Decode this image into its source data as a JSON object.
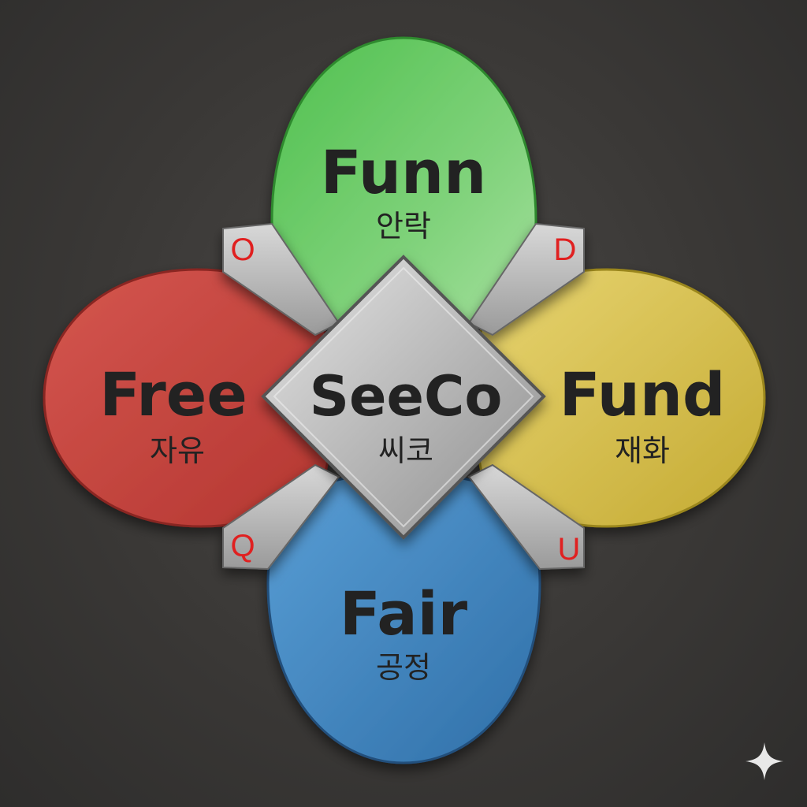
{
  "center": {
    "title": "SeeCo",
    "subtitle": "씨코"
  },
  "petals": [
    {
      "id": "top",
      "title": "Funn",
      "subtitle": "안락",
      "color": "#5cc25a"
    },
    {
      "id": "left",
      "title": "Free",
      "subtitle": "자유",
      "color": "#c8413a"
    },
    {
      "id": "right",
      "title": "Fund",
      "subtitle": "재화",
      "color": "#d6c04a"
    },
    {
      "id": "bottom",
      "title": "Fair",
      "subtitle": "공정",
      "color": "#3f85c0"
    }
  ],
  "corners": [
    {
      "id": "top-left",
      "letter": "O"
    },
    {
      "id": "top-right",
      "letter": "D"
    },
    {
      "id": "bottom-left",
      "letter": "Q"
    },
    {
      "id": "bottom-right",
      "letter": "U"
    }
  ],
  "accent_color": "#e02020"
}
